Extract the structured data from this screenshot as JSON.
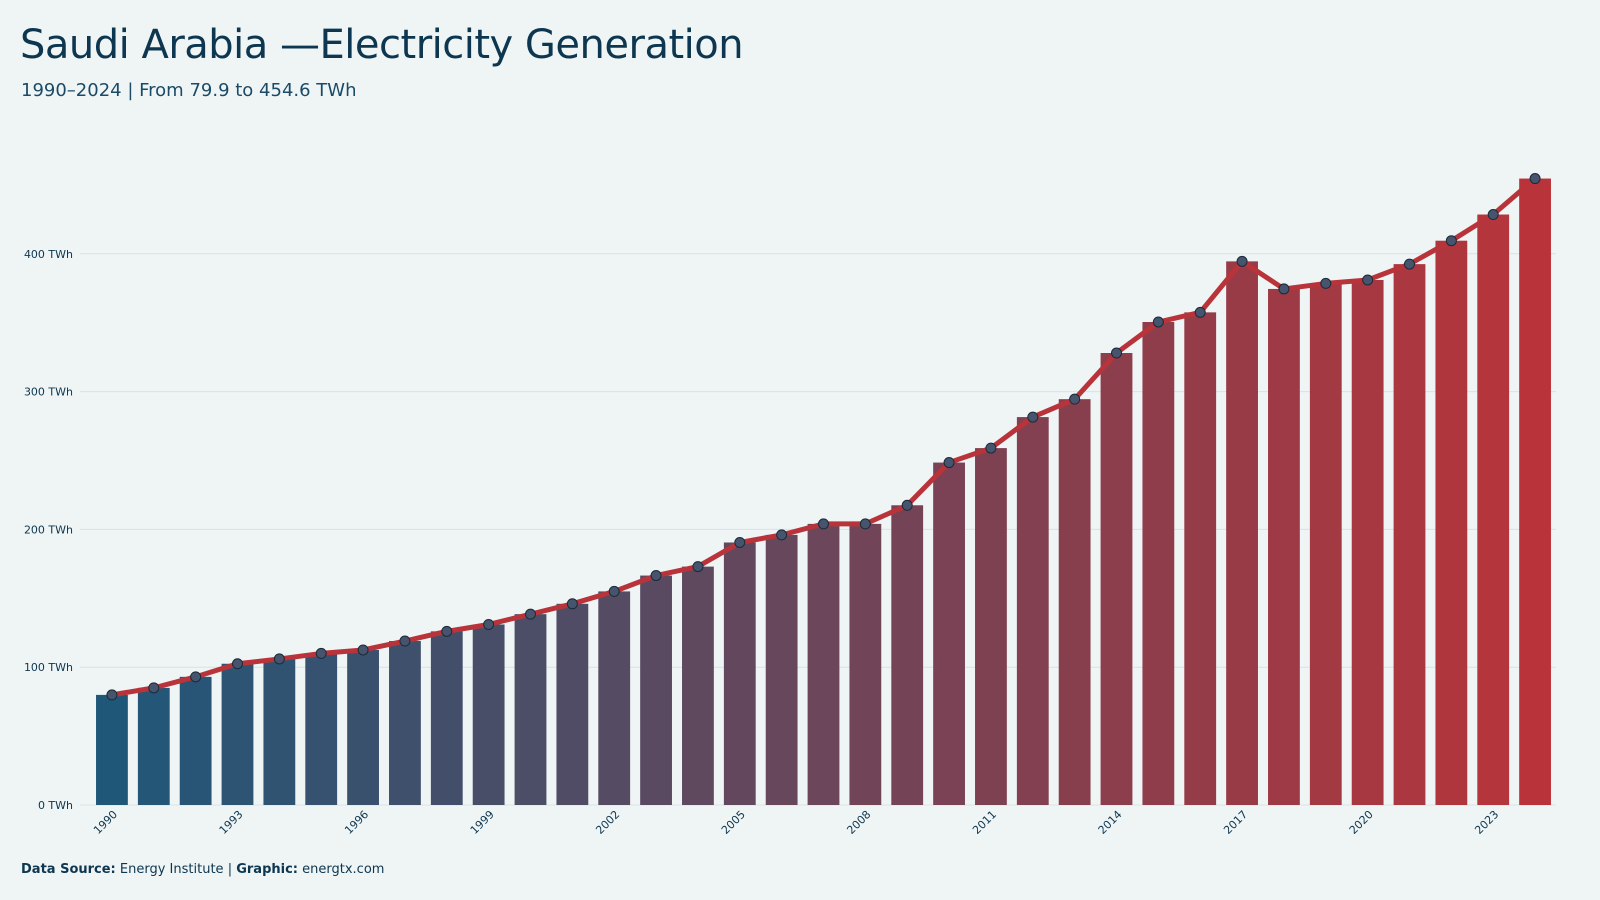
{
  "title": "Saudi Arabia —Electricity Generation",
  "subtitle": "1990–2024 | From 79.9 to 454.6 TWh",
  "footer": {
    "source_label": "Data Source:",
    "source_value": "Energy Institute",
    "separator": "|",
    "graphic_label": "Graphic:",
    "graphic_value": "energtx.com"
  },
  "colors": {
    "background": "#eff5f5",
    "bar_start": "#1f5779",
    "bar_end": "#b9343a",
    "line": "#b9343a",
    "point_fill": "#46556d",
    "gridline": "#d8e2e5",
    "text": "#0d3650"
  },
  "chart_data": {
    "type": "bar",
    "overlay": "line",
    "x": [
      1990,
      1991,
      1992,
      1993,
      1994,
      1995,
      1996,
      1997,
      1998,
      1999,
      2000,
      2001,
      2002,
      2003,
      2004,
      2005,
      2006,
      2007,
      2008,
      2009,
      2010,
      2011,
      2012,
      2013,
      2014,
      2015,
      2016,
      2017,
      2018,
      2019,
      2020,
      2021,
      2022,
      2023,
      2024
    ],
    "values": [
      79.9,
      85.0,
      93.0,
      102.5,
      106.0,
      110.0,
      112.5,
      119.0,
      126.0,
      131.0,
      138.5,
      146.0,
      155.0,
      166.5,
      173.0,
      190.5,
      196.0,
      204.0,
      204.0,
      217.5,
      248.5,
      259.0,
      281.5,
      294.5,
      328.0,
      350.5,
      357.5,
      394.5,
      374.5,
      378.5,
      381.0,
      392.5,
      409.5,
      428.5,
      454.6
    ],
    "x_tick_labels": [
      "1990",
      "1993",
      "1996",
      "1999",
      "2002",
      "2005",
      "2008",
      "2011",
      "2014",
      "2017",
      "2020",
      "2023"
    ],
    "y_ticks": [
      0,
      100,
      200,
      300,
      400
    ],
    "y_tick_labels": [
      "0 TWh",
      "100 TWh",
      "200 TWh",
      "300 TWh",
      "400 TWh"
    ],
    "ylim": [
      0,
      455
    ],
    "grid": true,
    "legend": "none",
    "xlabel": "",
    "ylabel": ""
  }
}
